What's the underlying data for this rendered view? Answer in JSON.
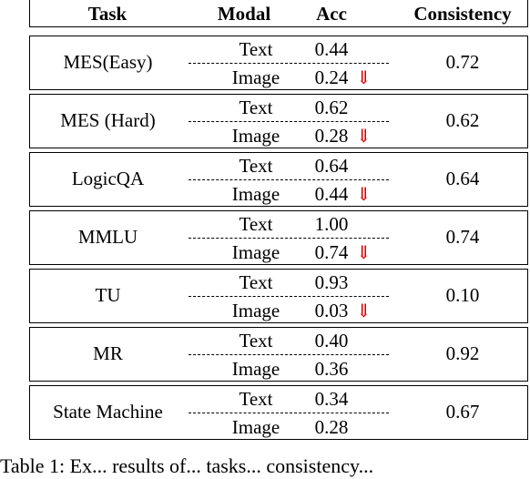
{
  "headers": {
    "task": "Task",
    "modal": "Modal",
    "acc": "Acc",
    "consistency": "Consistency"
  },
  "modal_labels": {
    "text": "Text",
    "image": "Image"
  },
  "drop_icon": "red-down-arrow",
  "colors": {
    "arrow": "#d40000",
    "rule": "#000000"
  },
  "rows": [
    {
      "task": "MES(Easy)",
      "text_acc": "0.44",
      "image_acc": "0.24",
      "arrow": "⇓",
      "consistency": "0.72"
    },
    {
      "task": "MES (Hard)",
      "text_acc": "0.62",
      "image_acc": "0.28",
      "arrow": "⇓",
      "consistency": "0.62"
    },
    {
      "task": "LogicQA",
      "text_acc": "0.64",
      "image_acc": "0.44",
      "arrow": "⇓",
      "consistency": "0.64"
    },
    {
      "task": "MMLU",
      "text_acc": "1.00",
      "image_acc": "0.74",
      "arrow": "⇓",
      "consistency": "0.74"
    },
    {
      "task": "TU",
      "text_acc": "0.93",
      "image_acc": "0.03",
      "arrow": "⇓",
      "consistency": "0.10"
    },
    {
      "task": "MR",
      "text_acc": "0.40",
      "image_acc": "0.36",
      "arrow": "",
      "consistency": "0.92"
    },
    {
      "task": "State Machine",
      "text_acc": "0.34",
      "image_acc": "0.28",
      "arrow": "",
      "consistency": "0.67"
    }
  ],
  "caption": "Table 1: Ex... results of... tasks... consistency..."
}
